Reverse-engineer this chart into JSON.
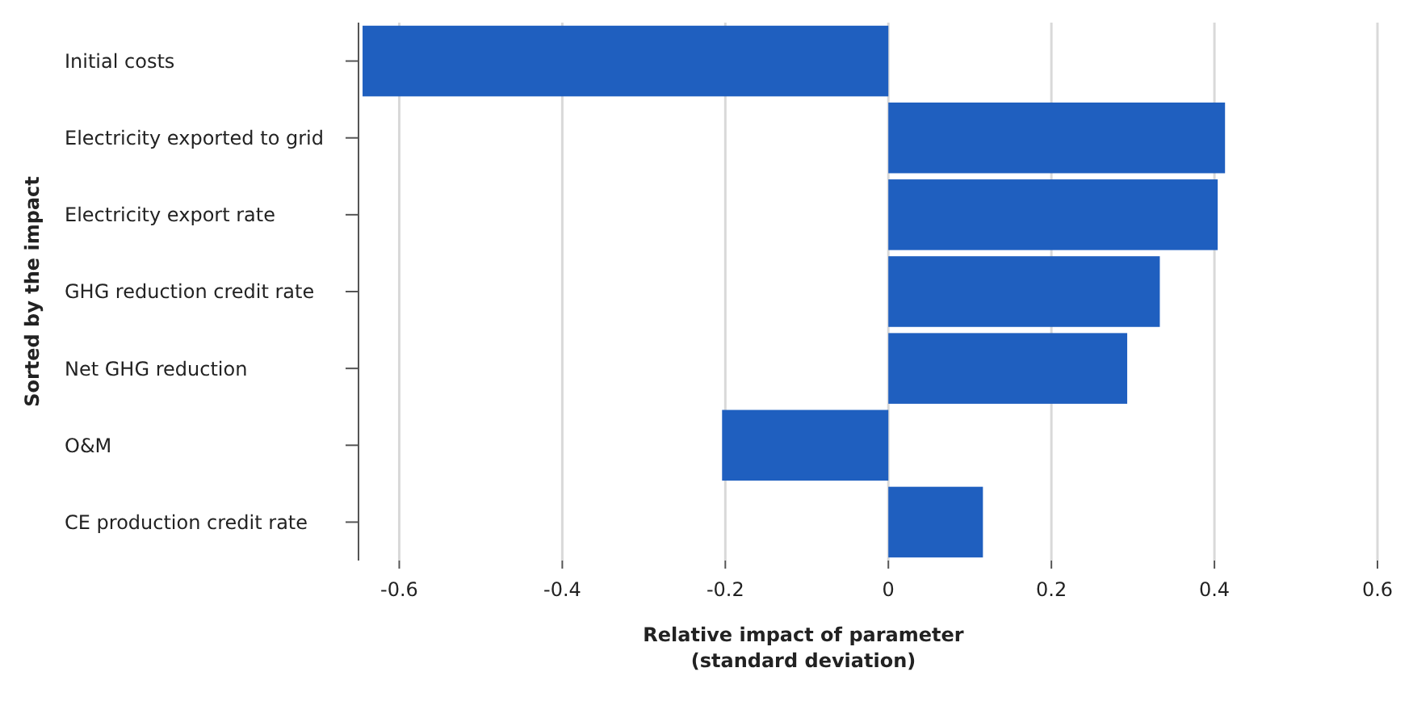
{
  "chart_data": {
    "type": "bar",
    "orientation": "horizontal",
    "xlabel": "Relative impact of parameter\n(standard deviation)",
    "ylabel": "Sorted by the impact",
    "categories": [
      "Initial costs",
      "Electricity exported to grid",
      "Electricity export rate",
      "GHG reduction credit rate",
      "Net GHG reduction",
      "O&M",
      "CE production credit rate"
    ],
    "values": [
      -0.645,
      0.413,
      0.404,
      0.333,
      0.293,
      -0.204,
      0.116
    ],
    "color": "#1f5fbf",
    "xlim": [
      -0.65,
      0.6
    ],
    "xticks": [
      -0.6,
      -0.4,
      -0.2,
      0,
      0.2,
      0.4,
      0.6
    ],
    "grid": "x"
  }
}
